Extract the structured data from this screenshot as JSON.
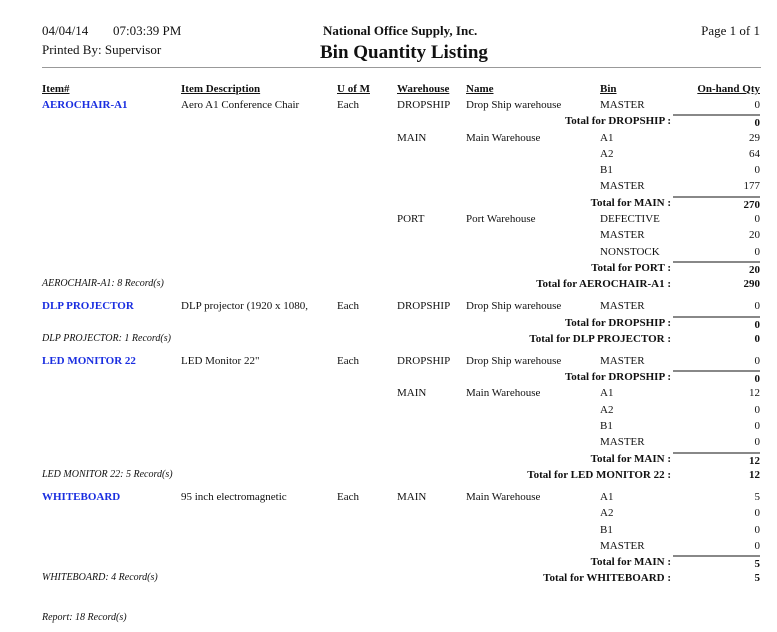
{
  "header": {
    "date": "04/04/14",
    "time": "07:03:39 PM",
    "printed_by": "Printed By: Supervisor",
    "company": "National Office Supply, Inc.",
    "title": "Bin Quantity Listing",
    "page": "Page 1 of 1"
  },
  "columns": {
    "item": "Item#",
    "desc": "Item Description",
    "uom": "U of M",
    "warehouse": "Warehouse",
    "name": "Name",
    "bin": "Bin",
    "qty": "On-hand Qty"
  },
  "items": [
    {
      "item": "AEROCHAIR-A1",
      "desc": "Aero A1 Conference Chair",
      "uom": "Each",
      "warehouses": [
        {
          "code": "DROPSHIP",
          "name": "Drop Ship warehouse",
          "bins": [
            {
              "bin": "MASTER",
              "qty": "0"
            }
          ],
          "total_label": "Total for DROPSHIP :",
          "total": "0"
        },
        {
          "code": "MAIN",
          "name": "Main Warehouse",
          "bins": [
            {
              "bin": "A1",
              "qty": "29"
            },
            {
              "bin": "A2",
              "qty": "64"
            },
            {
              "bin": "B1",
              "qty": "0"
            },
            {
              "bin": "MASTER",
              "qty": "177"
            }
          ],
          "total_label": "Total for MAIN :",
          "total": "270"
        },
        {
          "code": "PORT",
          "name": "Port Warehouse",
          "bins": [
            {
              "bin": "DEFECTIVE",
              "qty": "0"
            },
            {
              "bin": "MASTER",
              "qty": "20"
            },
            {
              "bin": "NONSTOCK",
              "qty": "0"
            }
          ],
          "total_label": "Total for PORT :",
          "total": "20"
        }
      ],
      "records": "AEROCHAIR-A1: 8 Record(s)",
      "total_label": "Total for AEROCHAIR-A1 :",
      "total": "290"
    },
    {
      "item": "DLP PROJECTOR",
      "desc": "DLP projector (1920 x 1080,",
      "uom": "Each",
      "warehouses": [
        {
          "code": "DROPSHIP",
          "name": "Drop Ship warehouse",
          "bins": [
            {
              "bin": "MASTER",
              "qty": "0"
            }
          ],
          "total_label": "Total for DROPSHIP :",
          "total": "0"
        }
      ],
      "records": "DLP PROJECTOR: 1 Record(s)",
      "total_label": "Total for DLP PROJECTOR :",
      "total": "0"
    },
    {
      "item": "LED MONITOR 22",
      "desc": "LED Monitor 22\"",
      "uom": "Each",
      "warehouses": [
        {
          "code": "DROPSHIP",
          "name": "Drop Ship warehouse",
          "bins": [
            {
              "bin": "MASTER",
              "qty": "0"
            }
          ],
          "total_label": "Total for DROPSHIP :",
          "total": "0"
        },
        {
          "code": "MAIN",
          "name": "Main Warehouse",
          "bins": [
            {
              "bin": "A1",
              "qty": "12"
            },
            {
              "bin": "A2",
              "qty": "0"
            },
            {
              "bin": "B1",
              "qty": "0"
            },
            {
              "bin": "MASTER",
              "qty": "0"
            }
          ],
          "total_label": "Total for MAIN :",
          "total": "12"
        }
      ],
      "records": "LED MONITOR 22: 5 Record(s)",
      "total_label": "Total for LED MONITOR 22 :",
      "total": "12"
    },
    {
      "item": "WHITEBOARD",
      "desc": "95 inch electromagnetic",
      "uom": "Each",
      "warehouses": [
        {
          "code": "MAIN",
          "name": "Main Warehouse",
          "bins": [
            {
              "bin": "A1",
              "qty": "5"
            },
            {
              "bin": "A2",
              "qty": "0"
            },
            {
              "bin": "B1",
              "qty": "0"
            },
            {
              "bin": "MASTER",
              "qty": "0"
            }
          ],
          "total_label": "Total for MAIN :",
          "total": "5"
        }
      ],
      "records": "WHITEBOARD: 4 Record(s)",
      "total_label": "Total for WHITEBOARD :",
      "total": "5"
    }
  ],
  "report_footer": "Report: 18 Record(s)"
}
